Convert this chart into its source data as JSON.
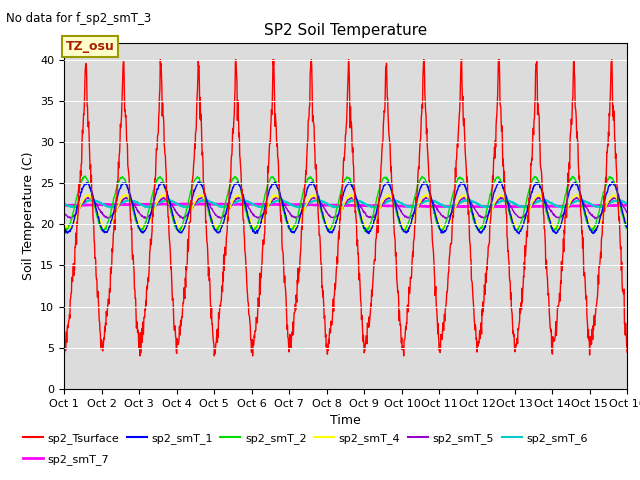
{
  "title": "SP2 Soil Temperature",
  "subtitle": "No data for f_sp2_smT_3",
  "xlabel": "Time",
  "ylabel": "Soil Temperature (C)",
  "ylim": [
    0,
    42
  ],
  "xlim": [
    0,
    15
  ],
  "xtick_labels": [
    "Oct 1",
    "Oct 2",
    "Oct 3",
    "Oct 4",
    "Oct 5",
    "Oct 6",
    "Oct 7",
    "Oct 8",
    "Oct 9",
    "Oct 10",
    "Oct 11",
    "Oct 12",
    "Oct 13",
    "Oct 14",
    "Oct 15",
    "Oct 16"
  ],
  "tz_label": "TZ_osu",
  "background_color": "#dcdcdc",
  "series_colors": {
    "sp2_Tsurface": "#ff0000",
    "sp2_smT_1": "#0000ff",
    "sp2_smT_2": "#00dd00",
    "sp2_smT_4": "#ffff00",
    "sp2_smT_5": "#9900cc",
    "sp2_smT_6": "#00cccc",
    "sp2_smT_7": "#ff00ff"
  },
  "series_lw": {
    "sp2_Tsurface": 1.0,
    "sp2_smT_1": 1.0,
    "sp2_smT_2": 1.0,
    "sp2_smT_4": 1.0,
    "sp2_smT_5": 1.0,
    "sp2_smT_6": 1.5,
    "sp2_smT_7": 1.8
  }
}
